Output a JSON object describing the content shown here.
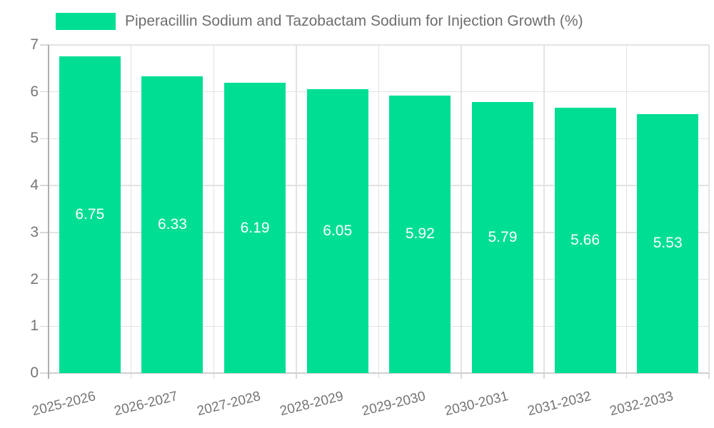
{
  "chart_data": {
    "type": "bar",
    "legend_label": "Piperacillin Sodium and Tazobactam Sodium for Injection Growth (%)",
    "legend_position": "top-left",
    "categories": [
      "2025-2026",
      "2026-2027",
      "2027-2028",
      "2028-2029",
      "2029-2030",
      "2030-2031",
      "2031-2032",
      "2032-2033"
    ],
    "values": [
      6.75,
      6.33,
      6.19,
      6.05,
      5.92,
      5.79,
      5.66,
      5.53
    ],
    "value_labels": [
      "6.75",
      "6.33",
      "6.19",
      "6.05",
      "5.92",
      "5.79",
      "5.66",
      "5.53"
    ],
    "xlabel": "",
    "ylabel": "",
    "ylim": [
      0,
      7
    ],
    "yticks": [
      0,
      1,
      2,
      3,
      4,
      5,
      6,
      7
    ],
    "grid": true,
    "colors": {
      "bar": "#00DE94",
      "grid": "#E3E3E3",
      "y_axis_line": "#AFAFAF",
      "x_axis_line": "#CFCFCF",
      "tick_mark": "#D8D8D8",
      "axis_text": "#757575",
      "legend_text": "#6E6E6E",
      "value_label_text": "#FFFFFF",
      "background": "#FFFFFF"
    }
  }
}
